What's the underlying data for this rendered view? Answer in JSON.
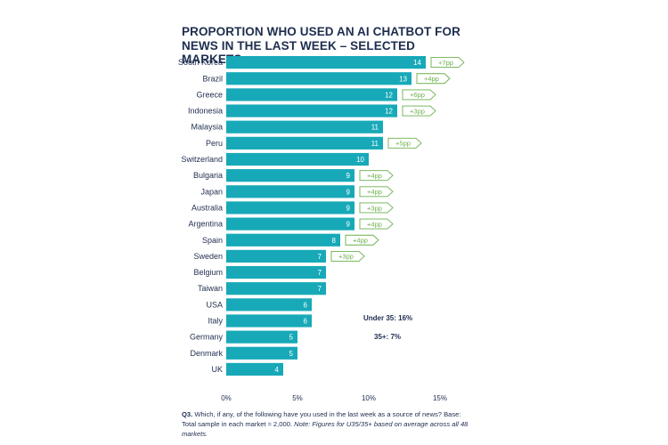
{
  "chart_data": {
    "type": "bar",
    "orientation": "horizontal",
    "title": "PROPORTION WHO USED AN AI CHATBOT FOR NEWS IN THE LAST WEEK – SELECTED MARKETS",
    "categories": [
      "South Korea",
      "Brazil",
      "Greece",
      "Indonesia",
      "Malaysia",
      "Peru",
      "Switzerland",
      "Bulgaria",
      "Japan",
      "Australia",
      "Argentina",
      "Spain",
      "Sweden",
      "Belgium",
      "Taiwan",
      "USA",
      "Italy",
      "Germany",
      "Denmark",
      "UK"
    ],
    "values": [
      14,
      13,
      12,
      12,
      11,
      11,
      10,
      9,
      9,
      9,
      9,
      8,
      7,
      7,
      7,
      6,
      6,
      5,
      5,
      4
    ],
    "changes": [
      "+7pp",
      "+4pp",
      "+6pp",
      "+3pp",
      "",
      "+5pp",
      "",
      "+4pp",
      "+4pp",
      "+3pp",
      "+4pp",
      "+4pp",
      "+3pp",
      "",
      "",
      "",
      "",
      "",
      "",
      ""
    ],
    "xlim": [
      0,
      15
    ],
    "xticks": [
      "0%",
      "5%",
      "10%",
      "15%"
    ],
    "grid": false,
    "colors": {
      "bar": "#17a9b8",
      "change": "#6ab04c",
      "text": "#1e2d4f"
    },
    "annotations": [
      "Under 35: 16%",
      "35+: 7%"
    ]
  },
  "footnote": {
    "question": "Q3.",
    "text": " Which, if any, of the following have you used in the last week as a source of news? Base: Total sample in each market ≈ 2,000. ",
    "note": "Note: Figures for U35/35+ based on average across all 48 markets."
  }
}
